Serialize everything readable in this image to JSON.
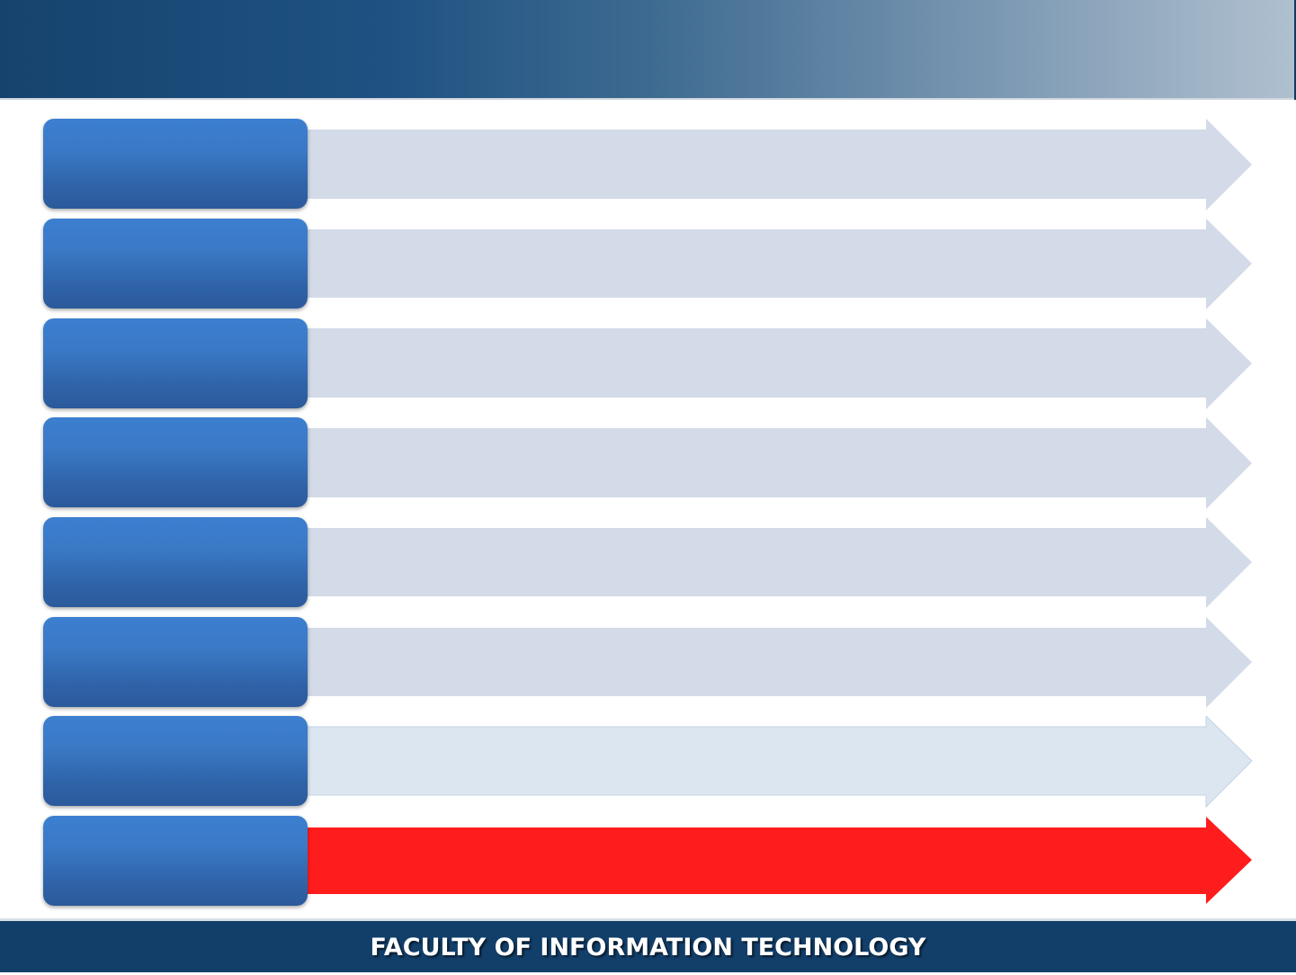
{
  "colors": {
    "label_box": "#3a79c6",
    "arrow_default": "#d3dae8",
    "arrow_light": "#dce6f1",
    "arrow_highlight": "#ff1c1c",
    "header": "#16436e",
    "footer": "#123f6a"
  },
  "rows": [
    {
      "label": "",
      "text": "",
      "arrow_color": "#d3dae8",
      "arrow_stroke": "#d3dae8"
    },
    {
      "label": "",
      "text": "",
      "arrow_color": "#d3dae8",
      "arrow_stroke": "#d3dae8"
    },
    {
      "label": "",
      "text": "",
      "arrow_color": "#d3dae8",
      "arrow_stroke": "#d3dae8"
    },
    {
      "label": "",
      "text": "",
      "arrow_color": "#d3dae8",
      "arrow_stroke": "#d3dae8"
    },
    {
      "label": "",
      "text": "",
      "arrow_color": "#d3dae8",
      "arrow_stroke": "#d3dae8"
    },
    {
      "label": "",
      "text": "",
      "arrow_color": "#d3dae8",
      "arrow_stroke": "#d3dae8"
    },
    {
      "label": "",
      "text": "",
      "arrow_color": "#dce6f1",
      "arrow_stroke": "#c5d3e4"
    },
    {
      "label": "",
      "text": "",
      "arrow_color": "#ff1c1c",
      "arrow_stroke": "#ff1c1c"
    }
  ],
  "footer": {
    "text": "FACULTY OF INFORMATION TECHNOLOGY"
  }
}
